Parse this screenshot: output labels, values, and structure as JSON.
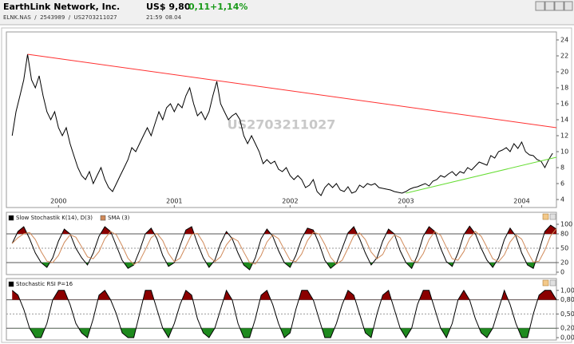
{
  "header": {
    "title": "EarthLink Network, Inc.",
    "subtitle": "ELNK.NAS  /  2543989  /  US2703211027",
    "price": "US$ 9,80",
    "change": "0,11",
    "change_pct": "+1,14%",
    "time": "21:59",
    "date": "08.04"
  },
  "chart_data": [
    {
      "type": "line",
      "watermark": "US2703211027",
      "xlim": [
        1999.55,
        2004.3
      ],
      "ylim": [
        3,
        25
      ],
      "xticks": [
        2000,
        2001,
        2002,
        2003,
        2004
      ],
      "yticks": [
        4,
        6,
        8,
        10,
        12,
        14,
        16,
        18,
        20,
        22,
        24
      ],
      "series": [
        {
          "color": "#000000",
          "x": [
            1999.6,
            1999.633,
            1999.667,
            1999.7,
            1999.733,
            1999.767,
            1999.8,
            1999.833,
            1999.867,
            1999.9,
            1999.933,
            1999.967,
            2000,
            2000.033,
            2000.067,
            2000.1,
            2000.133,
            2000.167,
            2000.2,
            2000.233,
            2000.267,
            2000.3,
            2000.333,
            2000.367,
            2000.4,
            2000.433,
            2000.467,
            2000.5,
            2000.533,
            2000.567,
            2000.6,
            2000.633,
            2000.667,
            2000.7,
            2000.733,
            2000.767,
            2000.8,
            2000.833,
            2000.867,
            2000.9,
            2000.933,
            2000.967,
            2001,
            2001.033,
            2001.067,
            2001.1,
            2001.133,
            2001.167,
            2001.2,
            2001.233,
            2001.267,
            2001.3,
            2001.333,
            2001.367,
            2001.4,
            2001.433,
            2001.467,
            2001.5,
            2001.533,
            2001.567,
            2001.6,
            2001.633,
            2001.667,
            2001.7,
            2001.733,
            2001.767,
            2001.8,
            2001.833,
            2001.867,
            2001.9,
            2001.933,
            2001.967,
            2002,
            2002.033,
            2002.067,
            2002.1,
            2002.133,
            2002.167,
            2002.2,
            2002.233,
            2002.267,
            2002.3,
            2002.333,
            2002.367,
            2002.4,
            2002.433,
            2002.467,
            2002.5,
            2002.533,
            2002.567,
            2002.6,
            2002.633,
            2002.667,
            2002.7,
            2002.733,
            2002.767,
            2002.8,
            2002.833,
            2002.867,
            2002.9,
            2002.933,
            2002.967,
            2003,
            2003.033,
            2003.067,
            2003.1,
            2003.133,
            2003.167,
            2003.2,
            2003.233,
            2003.267,
            2003.3,
            2003.333,
            2003.367,
            2003.4,
            2003.433,
            2003.467,
            2003.5,
            2003.533,
            2003.567,
            2003.6,
            2003.633,
            2003.667,
            2003.7,
            2003.733,
            2003.767,
            2003.8,
            2003.833,
            2003.867,
            2003.9,
            2003.933,
            2003.967,
            2004,
            2004.033,
            2004.067,
            2004.1,
            2004.133,
            2004.167,
            2004.2,
            2004.233,
            2004.267
          ],
          "values": [
            12,
            15,
            17,
            19,
            22.2,
            19,
            18,
            19.5,
            17,
            15,
            14,
            15,
            13,
            12,
            13,
            11,
            9.5,
            8,
            7,
            6.5,
            7.5,
            6,
            7,
            8,
            6.5,
            5.5,
            5,
            6,
            7,
            8,
            9,
            10.5,
            10,
            11,
            12,
            13,
            12,
            13.5,
            15,
            14,
            15.5,
            16,
            15,
            16,
            15.5,
            17,
            18,
            16,
            14.5,
            15,
            14,
            15,
            17,
            18.8,
            16,
            15,
            14,
            14.5,
            14.8,
            14,
            12,
            11,
            12,
            11,
            10,
            8.5,
            9,
            8.5,
            8.8,
            7.8,
            7.5,
            8,
            7,
            6.5,
            7,
            6.5,
            5.5,
            5.8,
            6.5,
            5,
            4.5,
            5.5,
            6,
            5.5,
            6,
            5.2,
            5,
            5.6,
            4.8,
            5,
            5.8,
            5.5,
            6,
            5.8,
            6,
            5.5,
            5.4,
            5.3,
            5.2,
            5,
            4.9,
            4.8,
            5,
            5.3,
            5.5,
            5.6,
            5.8,
            6,
            5.7,
            6.3,
            6.5,
            7,
            6.8,
            7.2,
            7.5,
            7,
            7.5,
            7.3,
            8,
            7.7,
            8.2,
            8.7,
            8.5,
            8.3,
            9.5,
            9.2,
            10,
            10.2,
            10.5,
            10,
            11,
            10.4,
            11.2,
            10,
            9.6,
            9.5,
            9,
            8.8,
            8,
            9,
            9.8
          ]
        },
        {
          "color": "#ff3030",
          "x": [
            1999.733,
            2004.3
          ],
          "values": [
            22.2,
            13
          ]
        },
        {
          "color": "#66dd33",
          "x": [
            2003,
            2004.3
          ],
          "values": [
            4.8,
            9.3
          ]
        }
      ]
    },
    {
      "type": "line",
      "legend": "top-left",
      "xlim": [
        1999.55,
        2004.3
      ],
      "ylim": [
        -5,
        125
      ],
      "yticks": [
        0,
        20,
        50,
        80,
        100
      ],
      "upper_band": 80,
      "lower_band": 20,
      "mid_line": 50,
      "upper_fill": "#8b0000",
      "lower_fill": "#1e8a1e",
      "x": [
        1999.6,
        1999.65,
        1999.7,
        1999.75,
        1999.8,
        1999.85,
        1999.9,
        1999.95,
        2000,
        2000.05,
        2000.1,
        2000.15,
        2000.2,
        2000.25,
        2000.3,
        2000.35,
        2000.4,
        2000.45,
        2000.5,
        2000.55,
        2000.6,
        2000.65,
        2000.7,
        2000.75,
        2000.8,
        2000.85,
        2000.9,
        2000.95,
        2001,
        2001.05,
        2001.1,
        2001.15,
        2001.2,
        2001.25,
        2001.3,
        2001.35,
        2001.4,
        2001.45,
        2001.5,
        2001.55,
        2001.6,
        2001.65,
        2001.7,
        2001.75,
        2001.8,
        2001.85,
        2001.9,
        2001.95,
        2002,
        2002.05,
        2002.1,
        2002.15,
        2002.2,
        2002.25,
        2002.3,
        2002.35,
        2002.4,
        2002.45,
        2002.5,
        2002.55,
        2002.6,
        2002.65,
        2002.7,
        2002.75,
        2002.8,
        2002.85,
        2002.9,
        2002.95,
        2003,
        2003.05,
        2003.1,
        2003.15,
        2003.2,
        2003.25,
        2003.3,
        2003.35,
        2003.4,
        2003.45,
        2003.5,
        2003.55,
        2003.6,
        2003.65,
        2003.7,
        2003.75,
        2003.8,
        2003.85,
        2003.9,
        2003.95,
        2004,
        2004.05,
        2004.1,
        2004.15,
        2004.2,
        2004.25,
        2004.3
      ],
      "series": [
        {
          "name": "Slow Stochastik K(14), D(3)",
          "color": "#000000",
          "values": [
            60,
            85,
            95,
            70,
            40,
            20,
            10,
            30,
            65,
            90,
            80,
            50,
            30,
            15,
            40,
            75,
            95,
            85,
            55,
            25,
            8,
            15,
            45,
            80,
            92,
            70,
            35,
            12,
            20,
            55,
            88,
            95,
            60,
            30,
            10,
            25,
            60,
            85,
            70,
            40,
            15,
            5,
            30,
            70,
            90,
            75,
            45,
            20,
            10,
            35,
            70,
            92,
            88,
            60,
            25,
            8,
            18,
            50,
            82,
            95,
            70,
            40,
            15,
            30,
            65,
            90,
            80,
            45,
            20,
            8,
            35,
            75,
            95,
            85,
            50,
            22,
            12,
            40,
            78,
            96,
            80,
            50,
            25,
            10,
            30,
            68,
            92,
            75,
            40,
            15,
            8,
            45,
            85,
            98,
            90
          ]
        },
        {
          "name": "SMA (3)",
          "color": "#d08a5a",
          "values": [
            60,
            72,
            80,
            83,
            68,
            43,
            23,
            20,
            35,
            62,
            78,
            73,
            53,
            32,
            28,
            43,
            70,
            85,
            78,
            55,
            29,
            16,
            23,
            47,
            72,
            81,
            66,
            39,
            22,
            29,
            54,
            79,
            81,
            62,
            33,
            22,
            32,
            57,
            72,
            65,
            42,
            20,
            17,
            35,
            63,
            78,
            70,
            47,
            25,
            22,
            38,
            66,
            83,
            80,
            58,
            31,
            17,
            25,
            50,
            76,
            82,
            68,
            42,
            28,
            37,
            62,
            78,
            72,
            48,
            24,
            21,
            39,
            68,
            85,
            77,
            52,
            28,
            25,
            43,
            71,
            85,
            75,
            52,
            28,
            22,
            36,
            63,
            78,
            69,
            43,
            21,
            23,
            46,
            76,
            91
          ]
        }
      ]
    },
    {
      "type": "line",
      "legend": "top-left",
      "xlim": [
        1999.55,
        2004.3
      ],
      "ylim": [
        -0.05,
        1.25
      ],
      "yticks": [
        {
          "value": 0,
          "label": "0,00"
        },
        {
          "value": 0.2,
          "label": "0,20"
        },
        {
          "value": 0.5,
          "label": "0,50"
        },
        {
          "value": 0.8,
          "label": "0,80"
        },
        {
          "value": 1,
          "label": "1,00"
        }
      ],
      "upper_band": 0.8,
      "lower_band": 0.2,
      "mid_line": 0.5,
      "upper_fill": "#8b0000",
      "lower_fill": "#1e8a1e",
      "x": [
        1999.6,
        1999.65,
        1999.7,
        1999.75,
        1999.8,
        1999.85,
        1999.9,
        1999.95,
        2000,
        2000.05,
        2000.1,
        2000.15,
        2000.2,
        2000.25,
        2000.3,
        2000.35,
        2000.4,
        2000.45,
        2000.5,
        2000.55,
        2000.6,
        2000.65,
        2000.7,
        2000.75,
        2000.8,
        2000.85,
        2000.9,
        2000.95,
        2001,
        2001.05,
        2001.1,
        2001.15,
        2001.2,
        2001.25,
        2001.3,
        2001.35,
        2001.4,
        2001.45,
        2001.5,
        2001.55,
        2001.6,
        2001.65,
        2001.7,
        2001.75,
        2001.8,
        2001.85,
        2001.9,
        2001.95,
        2002,
        2002.05,
        2002.1,
        2002.15,
        2002.2,
        2002.25,
        2002.3,
        2002.35,
        2002.4,
        2002.45,
        2002.5,
        2002.55,
        2002.6,
        2002.65,
        2002.7,
        2002.75,
        2002.8,
        2002.85,
        2002.9,
        2002.95,
        2003,
        2003.05,
        2003.1,
        2003.15,
        2003.2,
        2003.25,
        2003.3,
        2003.35,
        2003.4,
        2003.45,
        2003.5,
        2003.55,
        2003.6,
        2003.65,
        2003.7,
        2003.75,
        2003.8,
        2003.85,
        2003.9,
        2003.95,
        2004,
        2004.05,
        2004.1,
        2004.15,
        2004.2,
        2004.25,
        2004.3
      ],
      "series": [
        {
          "name": "Stochastic RSI P=16",
          "color": "#000000",
          "values": [
            1,
            0.9,
            0.6,
            0.2,
            0,
            0,
            0.3,
            0.8,
            1,
            1,
            0.7,
            0.3,
            0.1,
            0,
            0.4,
            0.9,
            1,
            0.8,
            0.5,
            0.1,
            0,
            0,
            0.5,
            1,
            1,
            0.6,
            0.2,
            0,
            0.3,
            0.7,
            1,
            0.9,
            0.4,
            0.1,
            0,
            0.2,
            0.6,
            1,
            0.8,
            0.3,
            0,
            0,
            0.4,
            0.9,
            1,
            0.7,
            0.3,
            0,
            0.1,
            0.6,
            1,
            1,
            0.8,
            0.4,
            0,
            0,
            0.3,
            0.7,
            1,
            0.9,
            0.5,
            0.1,
            0,
            0.5,
            0.9,
            1,
            0.6,
            0.2,
            0,
            0.2,
            0.7,
            1,
            1,
            0.6,
            0.2,
            0,
            0.3,
            0.8,
            1,
            0.8,
            0.4,
            0.1,
            0,
            0.2,
            0.6,
            1,
            0.7,
            0.3,
            0,
            0,
            0.5,
            0.9,
            1,
            1,
            0.8
          ]
        }
      ]
    }
  ]
}
